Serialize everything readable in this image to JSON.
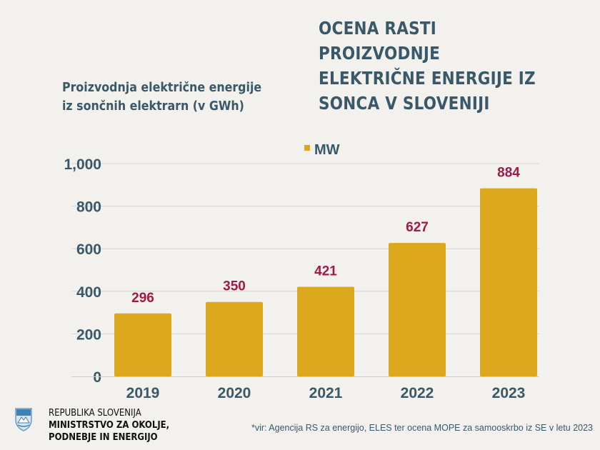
{
  "title": "OCENA RASTI PROIZVODNJE\nELEKTRIČNE ENERGIJE IZ\nSONCA V SLOVENIJI",
  "subtitle": "Proizvodnja električne energije\niz sončnih elektrarn (v GWh)",
  "footer": {
    "org_line1": "REPUBLIKA SLOVENIJA",
    "org_line2": "MINISTRSTVO ZA OKOLJE,",
    "org_line3": "PODNEBJE IN ENERGIJO",
    "source": "*vir: Agencija RS za energijo, ELES ter ocena MOPE za samooskrbo iz SE v letu 2023"
  },
  "colors": {
    "bar": "#dba81e",
    "data_label": "#a3184b",
    "text": "#3a5868",
    "background": "#f2f1ed"
  },
  "chart_data": {
    "type": "bar",
    "categories": [
      "2019",
      "2020",
      "2021",
      "2022",
      "2023"
    ],
    "series": [
      {
        "name": "MW",
        "values": [
          296,
          350,
          421,
          627,
          884
        ]
      }
    ],
    "ylim": [
      0,
      1000
    ],
    "yticks": [
      0,
      200,
      400,
      600,
      800,
      1000
    ],
    "ytick_labels": [
      "0",
      "200",
      "400",
      "600",
      "800",
      "1,000"
    ],
    "grid": true,
    "legend": "top-center",
    "data_labels": true
  }
}
